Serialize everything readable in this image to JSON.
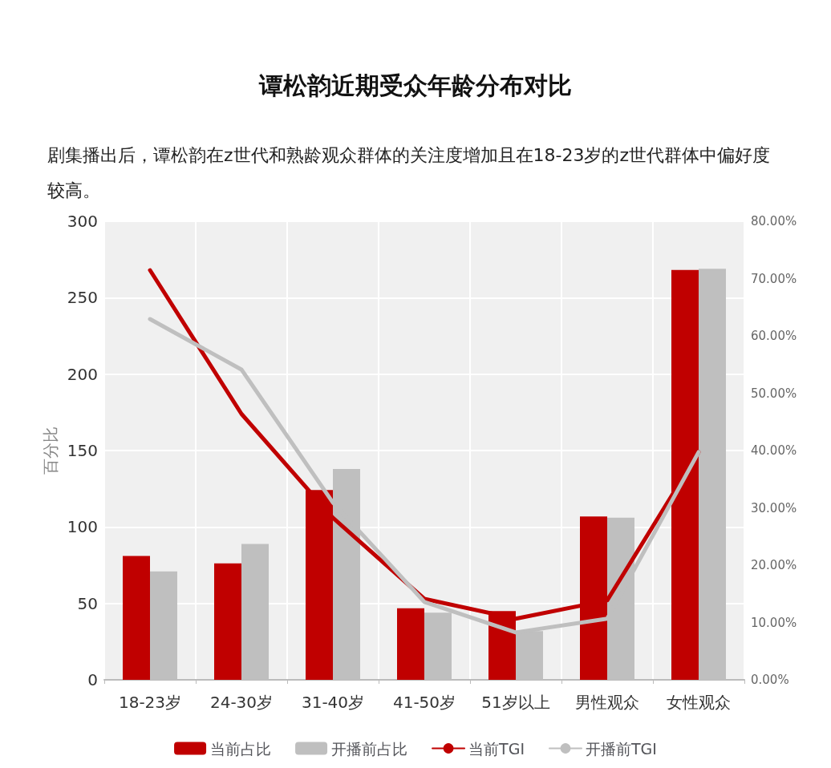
{
  "chart_data": {
    "type": "bar",
    "title": "谭松韵近期受众年龄分布对比",
    "subtitle": "剧集播出后，谭松韵在z世代和熟龄观众群体的关注度增加且在18-23岁的z世代群体中偏好度较高。",
    "ylabel": "百分比",
    "categories": [
      "18-23岁",
      "24-30岁",
      "31-40岁",
      "41-50岁",
      "51岁以上",
      "男性观众",
      "女性观众"
    ],
    "series": [
      {
        "name": "当前占比",
        "axis": "y2",
        "color": "#c00000",
        "values": [
          21.6,
          20.3,
          33.1,
          12.5,
          12.0,
          28.5,
          71.5
        ]
      },
      {
        "name": "开播前占比",
        "axis": "y2",
        "color": "#bfbfbf",
        "values": [
          18.9,
          23.7,
          36.8,
          11.7,
          8.5,
          28.3,
          71.7
        ]
      },
      {
        "name": "当前TGI",
        "type": "line",
        "axis": "y",
        "color": "#c00000",
        "values": [
          268,
          174,
          106,
          53,
          40,
          52,
          149
        ]
      },
      {
        "name": "开播前TGI",
        "type": "line",
        "axis": "y",
        "color": "#bfbfbf",
        "values": [
          236,
          203,
          116,
          51,
          31,
          40,
          149
        ]
      }
    ],
    "ylim": [
      0,
      300
    ],
    "yticks": [
      0,
      50,
      100,
      150,
      200,
      250,
      300
    ],
    "y2lim": [
      0,
      80
    ],
    "y2ticks": [
      {
        "value": 0,
        "label": "0.00%"
      },
      {
        "value": 10,
        "label": "10.00%"
      },
      {
        "value": 20,
        "label": "20.00%"
      },
      {
        "value": 30,
        "label": "30.00%"
      },
      {
        "value": 40,
        "label": "40.00%"
      },
      {
        "value": 50,
        "label": "50.00%"
      },
      {
        "value": 60,
        "label": "60.00%"
      },
      {
        "value": 70,
        "label": "70.00%"
      },
      {
        "value": 80,
        "label": "80.00%"
      }
    ],
    "grid": true,
    "legend": "bottom",
    "marker": "none"
  }
}
